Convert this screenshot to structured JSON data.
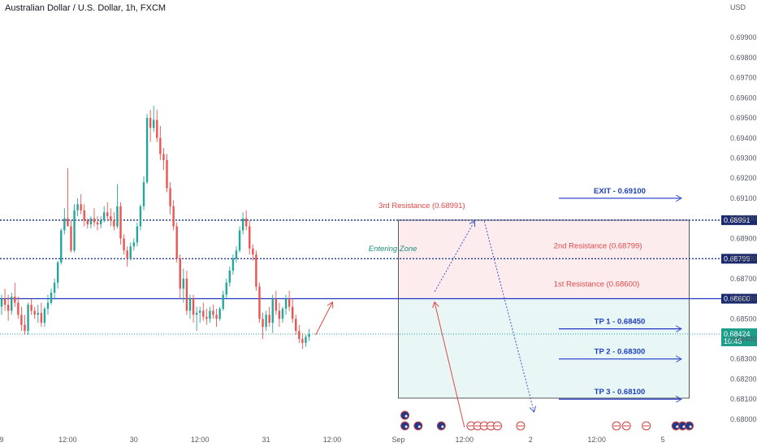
{
  "header": {
    "title": "Australian Dollar / U.S. Dollar, 1h, FXCM"
  },
  "chart_data": {
    "type": "candlestick",
    "currency_label": "USD",
    "y_ticks": [
      0.699,
      0.698,
      0.697,
      0.696,
      0.695,
      0.694,
      0.693,
      0.692,
      0.691,
      0.69,
      0.689,
      0.688,
      0.687,
      0.686,
      0.685,
      0.684,
      0.683,
      0.682,
      0.681,
      0.68
    ],
    "y_tick_labels": [
      "0.69900",
      "0.69800",
      "0.69700",
      "0.69600",
      "0.69500",
      "0.69400",
      "0.69300",
      "0.69200",
      "0.69100",
      "0.69000",
      "0.68900",
      "0.68800",
      "0.68700",
      "0.68600",
      "0.68500",
      "0.68400",
      "0.68300",
      "0.68200",
      "0.68100",
      "0.68000"
    ],
    "ylim": [
      0.67955,
      0.7003
    ],
    "x_labels": [
      {
        "pos": 0,
        "text": "9"
      },
      {
        "pos": 20,
        "text": "12:00"
      },
      {
        "pos": 40,
        "text": "30"
      },
      {
        "pos": 60,
        "text": "12:00"
      },
      {
        "pos": 80,
        "text": "31"
      },
      {
        "pos": 100,
        "text": "12:00"
      },
      {
        "pos": 120,
        "text": "Sep"
      },
      {
        "pos": 140,
        "text": "12:00"
      },
      {
        "pos": 160,
        "text": "2"
      },
      {
        "pos": 180,
        "text": "12:00"
      },
      {
        "pos": 200,
        "text": "5"
      }
    ],
    "candles": [
      [
        0.6856,
        0.6862,
        0.6852,
        0.686
      ],
      [
        0.686,
        0.6865,
        0.6854,
        0.6857
      ],
      [
        0.6857,
        0.6862,
        0.6849,
        0.6854
      ],
      [
        0.6854,
        0.6863,
        0.6852,
        0.6861
      ],
      [
        0.6861,
        0.6868,
        0.6856,
        0.6858
      ],
      [
        0.6858,
        0.6861,
        0.685,
        0.6852
      ],
      [
        0.6852,
        0.6856,
        0.6844,
        0.6847
      ],
      [
        0.6847,
        0.6852,
        0.6842,
        0.6844
      ],
      [
        0.6844,
        0.6858,
        0.6842,
        0.6857
      ],
      [
        0.6857,
        0.686,
        0.6852,
        0.6854
      ],
      [
        0.6854,
        0.6856,
        0.685,
        0.6852
      ],
      [
        0.6852,
        0.6857,
        0.6848,
        0.6853
      ],
      [
        0.6853,
        0.6858,
        0.6846,
        0.6848
      ],
      [
        0.6848,
        0.6856,
        0.6846,
        0.6855
      ],
      [
        0.6855,
        0.6862,
        0.6852,
        0.6858
      ],
      [
        0.6858,
        0.6865,
        0.6857,
        0.6863
      ],
      [
        0.6863,
        0.687,
        0.686,
        0.6868
      ],
      [
        0.6868,
        0.6879,
        0.6865,
        0.6878
      ],
      [
        0.6878,
        0.6895,
        0.6877,
        0.6894
      ],
      [
        0.6894,
        0.6905,
        0.6892,
        0.69
      ],
      [
        0.69,
        0.6925,
        0.6898,
        0.6896
      ],
      [
        0.6896,
        0.6899,
        0.6883,
        0.6884
      ],
      [
        0.6884,
        0.6907,
        0.6883,
        0.6904
      ],
      [
        0.6904,
        0.691,
        0.6901,
        0.6907
      ],
      [
        0.6907,
        0.6912,
        0.6902,
        0.6904
      ],
      [
        0.6904,
        0.6907,
        0.6896,
        0.6899
      ],
      [
        0.6899,
        0.69,
        0.6895,
        0.6897
      ],
      [
        0.6897,
        0.6901,
        0.6895,
        0.69
      ],
      [
        0.69,
        0.6905,
        0.6896,
        0.6898
      ],
      [
        0.6898,
        0.6901,
        0.6894,
        0.6897
      ],
      [
        0.6897,
        0.6901,
        0.6895,
        0.6899
      ],
      [
        0.6899,
        0.6906,
        0.6898,
        0.6903
      ],
      [
        0.6903,
        0.6908,
        0.6899,
        0.6901
      ],
      [
        0.6901,
        0.6905,
        0.6896,
        0.6899
      ],
      [
        0.6899,
        0.6903,
        0.6894,
        0.6896
      ],
      [
        0.6896,
        0.6917,
        0.6895,
        0.6906
      ],
      [
        0.6906,
        0.6908,
        0.6887,
        0.689
      ],
      [
        0.689,
        0.6892,
        0.6882,
        0.6884
      ],
      [
        0.6884,
        0.6886,
        0.6876,
        0.688
      ],
      [
        0.688,
        0.6888,
        0.6879,
        0.6886
      ],
      [
        0.6886,
        0.689,
        0.6884,
        0.6888
      ],
      [
        0.6888,
        0.6898,
        0.6886,
        0.6896
      ],
      [
        0.6896,
        0.6907,
        0.6894,
        0.6906
      ],
      [
        0.6906,
        0.6921,
        0.6904,
        0.6918
      ],
      [
        0.6918,
        0.6952,
        0.6917,
        0.695
      ],
      [
        0.695,
        0.6954,
        0.6938,
        0.6945
      ],
      [
        0.6945,
        0.6956,
        0.6943,
        0.6949
      ],
      [
        0.6949,
        0.6954,
        0.6938,
        0.694
      ],
      [
        0.694,
        0.6946,
        0.6929,
        0.6932
      ],
      [
        0.6932,
        0.6935,
        0.6924,
        0.6929
      ],
      [
        0.6929,
        0.6932,
        0.6913,
        0.6915
      ],
      [
        0.6915,
        0.6918,
        0.6902,
        0.6906
      ],
      [
        0.6906,
        0.6909,
        0.6894,
        0.6896
      ],
      [
        0.6896,
        0.6898,
        0.6878,
        0.688
      ],
      [
        0.688,
        0.6882,
        0.686,
        0.6865
      ],
      [
        0.6865,
        0.6875,
        0.6858,
        0.687
      ],
      [
        0.687,
        0.6874,
        0.6852,
        0.6854
      ],
      [
        0.6854,
        0.6862,
        0.685,
        0.686
      ],
      [
        0.686,
        0.6862,
        0.6848,
        0.6852
      ],
      [
        0.6852,
        0.6856,
        0.6844,
        0.6853
      ],
      [
        0.6853,
        0.6856,
        0.6848,
        0.6854
      ],
      [
        0.6854,
        0.6858,
        0.6849,
        0.6851
      ],
      [
        0.6851,
        0.6855,
        0.6847,
        0.685
      ],
      [
        0.685,
        0.6856,
        0.6848,
        0.6854
      ],
      [
        0.6854,
        0.6857,
        0.685,
        0.6852
      ],
      [
        0.6852,
        0.6855,
        0.6846,
        0.685
      ],
      [
        0.685,
        0.6856,
        0.6849,
        0.6855
      ],
      [
        0.6855,
        0.6864,
        0.6854,
        0.6862
      ],
      [
        0.6862,
        0.687,
        0.686,
        0.6868
      ],
      [
        0.6868,
        0.6876,
        0.6866,
        0.6874
      ],
      [
        0.6874,
        0.6882,
        0.6872,
        0.688
      ],
      [
        0.688,
        0.6886,
        0.6878,
        0.6884
      ],
      [
        0.6884,
        0.6896,
        0.6883,
        0.6894
      ],
      [
        0.6894,
        0.6903,
        0.6892,
        0.69
      ],
      [
        0.69,
        0.6904,
        0.6894,
        0.6896
      ],
      [
        0.6896,
        0.6899,
        0.6882,
        0.6885
      ],
      [
        0.6885,
        0.6887,
        0.6879,
        0.6882
      ],
      [
        0.6882,
        0.6884,
        0.6864,
        0.6866
      ],
      [
        0.6866,
        0.6868,
        0.6848,
        0.685
      ],
      [
        0.685,
        0.6853,
        0.684,
        0.6846
      ],
      [
        0.6846,
        0.6854,
        0.6844,
        0.6852
      ],
      [
        0.6852,
        0.6856,
        0.6846,
        0.6848
      ],
      [
        0.6848,
        0.6862,
        0.6843,
        0.686
      ],
      [
        0.686,
        0.6864,
        0.6852,
        0.6854
      ],
      [
        0.6854,
        0.6858,
        0.6846,
        0.685
      ],
      [
        0.685,
        0.6856,
        0.6848,
        0.6855
      ],
      [
        0.6855,
        0.6862,
        0.6852,
        0.686
      ],
      [
        0.686,
        0.6864,
        0.6854,
        0.6856
      ],
      [
        0.6856,
        0.686,
        0.6848,
        0.685
      ],
      [
        0.685,
        0.6852,
        0.6842,
        0.6844
      ],
      [
        0.6844,
        0.6847,
        0.6838,
        0.684
      ],
      [
        0.684,
        0.6843,
        0.6835,
        0.6838
      ],
      [
        0.6838,
        0.6842,
        0.6836,
        0.6841
      ],
      [
        0.6841,
        0.6845,
        0.6839,
        0.68424
      ]
    ],
    "levels": [
      {
        "name": "3rd Resistance",
        "value": 0.68991,
        "label": "3rd Resistance (0.68991)",
        "tag": "0.68991"
      },
      {
        "name": "2nd Resistance",
        "value": 0.68799,
        "label": "2nd Resistance (0.68799)",
        "tag": "0.68799"
      },
      {
        "name": "1st Resistance",
        "value": 0.686,
        "label": "1st Resistance (0.68600)",
        "tag": "0.68600"
      }
    ],
    "current_price": {
      "value": 0.68424,
      "label": "0.68424",
      "countdown": "10:45"
    },
    "entering_zone_label": "Entering Zone",
    "zone": {
      "top": 0.68991,
      "mid": 0.686,
      "bottom": 0.68105,
      "start": 120,
      "end": 208
    },
    "targets": [
      {
        "label": "EXIT - 0.69100",
        "value": 0.691
      },
      {
        "label": "TP 1 - 0.68450",
        "value": 0.6845
      },
      {
        "label": "TP 2 - 0.68300",
        "value": 0.683
      },
      {
        "label": "TP 3 - 0.68100",
        "value": 0.681
      }
    ],
    "colors": {
      "up": "#26a69a",
      "down": "#ef5350",
      "level_line": "#1e3a8a",
      "solid_level": "#2337c4",
      "zone_upper": "#fdeced",
      "zone_lower": "#e8f7f6",
      "arrow_red": "#e04848",
      "arrow_blue": "#3a56c8",
      "price_tag": "#1e9e8a",
      "level_tag": "#1a2a6c",
      "dotted_price": "#26a69a"
    },
    "event_icons": [
      {
        "pos": 122,
        "row": 2,
        "kind": "aud"
      },
      {
        "pos": 122,
        "row": 1,
        "kind": "aud"
      },
      {
        "pos": 126,
        "row": 1,
        "kind": "aud"
      },
      {
        "pos": 133,
        "row": 1,
        "kind": "aud"
      },
      {
        "pos": 142,
        "row": 1,
        "kind": "usd"
      },
      {
        "pos": 144,
        "row": 1,
        "kind": "usd"
      },
      {
        "pos": 146,
        "row": 1,
        "kind": "usd"
      },
      {
        "pos": 148,
        "row": 1,
        "kind": "usd"
      },
      {
        "pos": 150,
        "row": 1,
        "kind": "usd"
      },
      {
        "pos": 157,
        "row": 1,
        "kind": "usd"
      },
      {
        "pos": 186,
        "row": 1,
        "kind": "usd"
      },
      {
        "pos": 189,
        "row": 1,
        "kind": "usd"
      },
      {
        "pos": 195,
        "row": 1,
        "kind": "usd"
      },
      {
        "pos": 204,
        "row": 1,
        "kind": "aud"
      },
      {
        "pos": 206,
        "row": 1,
        "kind": "aud"
      },
      {
        "pos": 208,
        "row": 1,
        "kind": "aud"
      }
    ]
  }
}
